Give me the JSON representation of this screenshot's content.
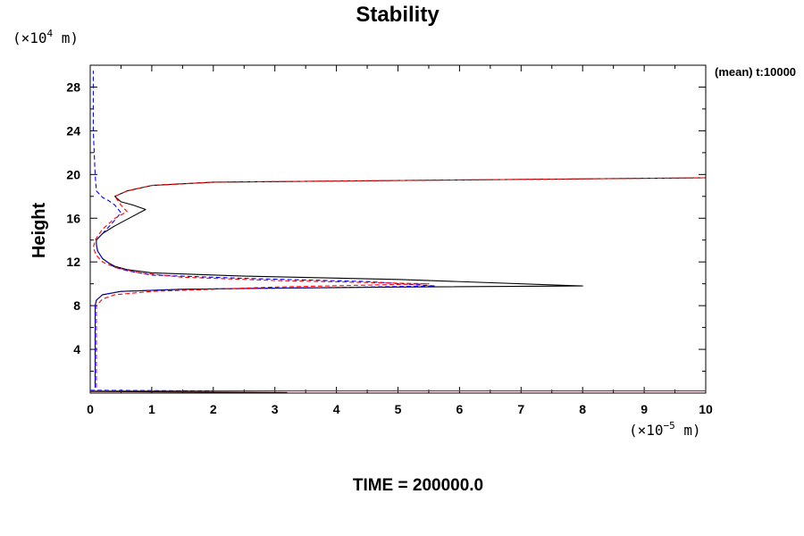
{
  "chart_data": {
    "type": "line",
    "title": "Stability",
    "ylabel": "Height",
    "y_unit_prefix": "(×10",
    "y_unit_exp": "4",
    "y_unit_suffix": " m)",
    "x_unit_prefix": "(×10",
    "x_unit_exp": "−5",
    "x_unit_suffix": " m)",
    "xlim": [
      0,
      10
    ],
    "ylim": [
      0,
      30
    ],
    "x_ticks": [
      "0",
      "1",
      "2",
      "3",
      "4",
      "5",
      "6",
      "7",
      "8",
      "9",
      "10"
    ],
    "y_ticks": [
      "4",
      "8",
      "12",
      "16",
      "20",
      "24",
      "28"
    ],
    "annotation": "(mean) t:10000",
    "footer": "TIME = 200000.0",
    "series": [
      {
        "color": "#000000",
        "style": "solid",
        "x": [
          0.08,
          0.08,
          0.08,
          0.1,
          0.2,
          0.5,
          1.5,
          3.0,
          5.0,
          8.0,
          5.0,
          2.5,
          1.0,
          0.6,
          0.4,
          0.3,
          0.2,
          0.12,
          0.1,
          0.1,
          0.2,
          0.4,
          0.7,
          0.9,
          0.7,
          0.5,
          0.4,
          0.6,
          1.0,
          2.0,
          10.0
        ],
        "y": [
          0.5,
          6.0,
          8.0,
          8.5,
          9.0,
          9.3,
          9.5,
          9.6,
          9.7,
          9.8,
          10.4,
          10.7,
          11.0,
          11.3,
          11.6,
          11.9,
          12.3,
          13.0,
          13.6,
          14.0,
          14.6,
          15.3,
          16.2,
          16.8,
          17.2,
          17.5,
          18.0,
          18.5,
          19.0,
          19.3,
          19.7
        ]
      },
      {
        "color": "#0000ff",
        "style": "dashed",
        "x": [
          0.08,
          0.08,
          0.08,
          0.1,
          0.2,
          0.5,
          1.5,
          3.0,
          4.5,
          5.6,
          4.5,
          2.5,
          1.0,
          0.6,
          0.4,
          0.3,
          0.2,
          0.12,
          0.1,
          0.1,
          0.2,
          0.35,
          0.5,
          0.4,
          0.3,
          0.2,
          0.1,
          0.08,
          0.05,
          0.05
        ],
        "y": [
          0.5,
          6.0,
          8.0,
          8.5,
          9.0,
          9.3,
          9.5,
          9.6,
          9.7,
          9.8,
          10.2,
          10.5,
          10.8,
          11.2,
          11.5,
          11.9,
          12.3,
          13.0,
          13.6,
          14.0,
          14.6,
          15.5,
          16.5,
          17.2,
          17.6,
          17.9,
          18.5,
          20.0,
          24.0,
          29.5
        ]
      },
      {
        "color": "#ff0000",
        "style": "dashed",
        "x": [
          0.1,
          0.1,
          0.1,
          0.2,
          0.4,
          1.0,
          2.0,
          3.0,
          5.5,
          3.0,
          1.5,
          0.8,
          0.4,
          0.2,
          0.1,
          0.05,
          0.08,
          0.2,
          0.4,
          0.6,
          0.5,
          0.4,
          0.6,
          1.0,
          2.0,
          10.0
        ],
        "y": [
          0.5,
          6.0,
          8.0,
          8.6,
          9.0,
          9.3,
          9.5,
          9.7,
          10.0,
          10.3,
          10.6,
          11.0,
          11.5,
          12.0,
          12.6,
          13.3,
          14.0,
          15.0,
          16.0,
          16.6,
          17.2,
          18.0,
          18.5,
          19.0,
          19.3,
          19.7
        ]
      },
      {
        "color": "#000000",
        "style": "solid",
        "x": [
          0,
          3.2
        ],
        "y": [
          0.15,
          0.05
        ]
      },
      {
        "color": "#ff0000",
        "style": "solid",
        "x": [
          0,
          10
        ],
        "y": [
          0.2,
          0.2
        ]
      },
      {
        "color": "#0000ff",
        "style": "dashed",
        "x": [
          0,
          2.0
        ],
        "y": [
          0.25,
          0.2
        ]
      }
    ]
  }
}
